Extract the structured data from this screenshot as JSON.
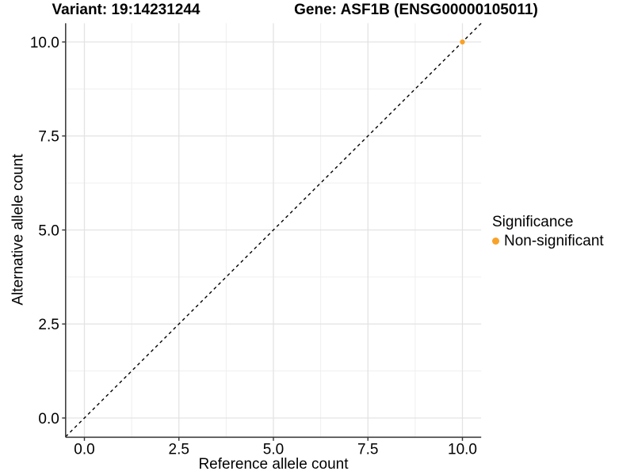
{
  "figure": {
    "title_variant": "Variant: 19:14231244",
    "title_gene": "Gene: ASF1B (ENSG00000105011)"
  },
  "chart_data": {
    "type": "scatter",
    "title": "Variant: 19:14231244    Gene: ASF1B (ENSG00000105011)",
    "xlabel": "Reference allele count",
    "ylabel": "Alternative allele count",
    "xlim": [
      -0.5,
      10.5
    ],
    "ylim": [
      -0.5,
      10.5
    ],
    "x_ticks": {
      "values": [
        0,
        2.5,
        5,
        7.5,
        10
      ],
      "labels": [
        "0.0",
        "2.5",
        "5.0",
        "7.5",
        "10.0"
      ]
    },
    "y_ticks": {
      "values": [
        0,
        2.5,
        5,
        7.5,
        10
      ],
      "labels": [
        "0.0",
        "2.5",
        "5.0",
        "7.5",
        "10.0"
      ]
    },
    "x_minor_ticks": [
      1.25,
      3.75,
      6.25,
      8.75
    ],
    "y_minor_ticks": [
      1.25,
      3.75,
      6.25,
      8.75
    ],
    "grid": "major+minor",
    "points": [
      {
        "x": 10,
        "y": 10,
        "series": "Non-significant"
      }
    ],
    "series": [
      {
        "name": "Non-significant",
        "color": "#F9A22A",
        "marker": "circle"
      }
    ],
    "reference_line": {
      "slope": 1,
      "intercept": 0,
      "style": "dashed",
      "color": "#000000"
    },
    "legend": {
      "title": "Significance",
      "position": "right"
    },
    "colors": {
      "point": "#F9A22A",
      "grid_major": "#E3E3E3",
      "grid_minor": "#EFEFEF",
      "axis": "#404040",
      "tick": "#333333",
      "text": "#000000",
      "background": "#FFFFFF"
    }
  }
}
